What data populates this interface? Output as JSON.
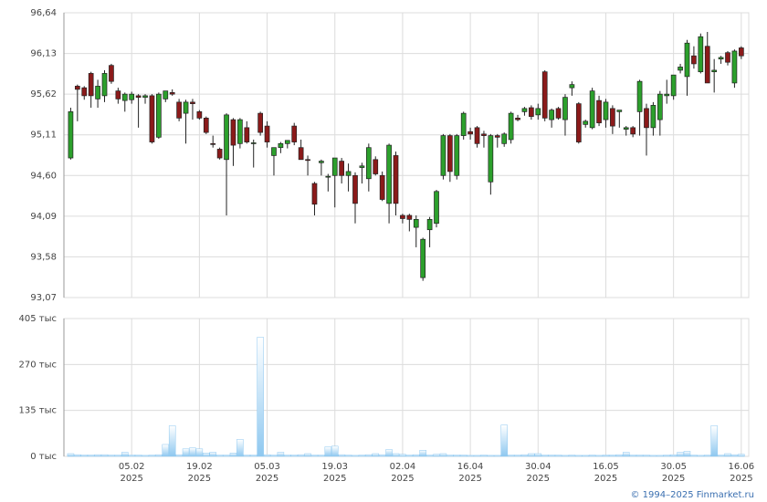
{
  "chart_data": {
    "type": "candlestick",
    "yticks": [
      {
        "value": 93.07,
        "label": "93,07"
      },
      {
        "value": 93.58,
        "label": "93,58"
      },
      {
        "value": 94.09,
        "label": "94,09"
      },
      {
        "value": 94.6,
        "label": "94,60"
      },
      {
        "value": 95.11,
        "label": "95,11"
      },
      {
        "value": 95.62,
        "label": "95,62"
      },
      {
        "value": 96.13,
        "label": "96,13"
      },
      {
        "value": 96.64,
        "label": "96,64"
      }
    ],
    "ylim": [
      93.07,
      96.64
    ],
    "xlim": [
      -1,
      100.1
    ],
    "xticks": [
      {
        "value": 9,
        "label": "05.02",
        "year": "2025"
      },
      {
        "value": 19,
        "label": "19.02",
        "year": "2025"
      },
      {
        "value": 29,
        "label": "05.03",
        "year": "2025"
      },
      {
        "value": 39,
        "label": "19.03",
        "year": "2025"
      },
      {
        "value": 49,
        "label": "02.04",
        "year": "2025"
      },
      {
        "value": 59,
        "label": "16.04",
        "year": "2025"
      },
      {
        "value": 69,
        "label": "30.04",
        "year": "2025"
      },
      {
        "value": 79,
        "label": "16.05",
        "year": "2025"
      },
      {
        "value": 89,
        "label": "30.05",
        "year": "2025"
      },
      {
        "value": 99,
        "label": "16.06",
        "year": "2025"
      }
    ],
    "up_color": "#2ca02c",
    "down_color": "#8b1a1a",
    "volume_color": "#8ec8f0",
    "open": [
      94.82,
      95.72,
      95.7,
      95.88,
      95.56,
      95.6,
      95.98,
      95.66,
      95.54,
      95.55,
      95.6,
      95.58,
      95.6,
      95.08,
      95.56,
      95.64,
      95.52,
      95.38,
      95.52,
      95.4,
      95.32,
      95.0,
      94.93,
      94.8,
      95.3,
      95.0,
      95.2,
      95.0,
      95.38,
      95.22,
      94.85,
      94.95,
      95.0,
      95.22,
      94.95,
      94.8,
      94.5,
      94.76,
      94.58,
      94.6,
      94.78,
      94.6,
      94.6,
      94.7,
      94.56,
      94.8,
      94.6,
      94.25,
      94.85,
      94.1,
      94.1,
      93.95,
      93.32,
      93.92,
      94.0,
      94.6,
      95.1,
      94.6,
      95.1,
      95.15,
      95.2,
      95.12,
      94.52,
      95.1,
      95.0,
      95.05,
      95.32,
      95.4,
      95.45,
      95.36,
      95.9,
      95.3,
      95.44,
      95.3,
      95.7,
      95.5,
      95.24,
      95.2,
      95.54,
      95.3,
      95.44,
      95.4,
      95.18,
      95.2,
      95.4,
      95.44,
      95.2,
      95.3,
      95.6,
      95.6,
      95.92,
      95.84,
      96.1,
      95.9,
      96.22,
      95.9,
      96.06,
      96.14,
      95.76,
      96.2
    ],
    "high": [
      95.45,
      95.74,
      95.72,
      95.9,
      95.8,
      95.92,
      96.0,
      95.7,
      95.64,
      95.65,
      95.62,
      95.62,
      95.62,
      95.64,
      95.66,
      95.68,
      95.56,
      95.55,
      95.56,
      95.42,
      95.34,
      95.1,
      94.95,
      95.38,
      95.32,
      95.32,
      95.28,
      95.05,
      95.4,
      95.28,
      94.95,
      95.02,
      95.04,
      95.26,
      95.05,
      94.85,
      94.52,
      94.8,
      94.62,
      94.82,
      94.82,
      94.75,
      94.64,
      94.76,
      95.0,
      94.84,
      94.65,
      95.0,
      94.9,
      94.12,
      94.12,
      94.1,
      93.82,
      94.08,
      94.42,
      95.12,
      95.12,
      95.12,
      95.4,
      95.2,
      95.22,
      95.16,
      95.12,
      95.12,
      95.14,
      95.4,
      95.36,
      95.46,
      95.48,
      95.5,
      95.92,
      95.44,
      95.46,
      95.62,
      95.78,
      95.52,
      95.3,
      95.7,
      95.6,
      95.56,
      95.48,
      95.42,
      95.22,
      95.22,
      95.8,
      95.5,
      95.52,
      95.66,
      95.8,
      95.86,
      96.0,
      96.3,
      96.22,
      96.38,
      96.4,
      96.06,
      96.1,
      96.16,
      96.18,
      96.22
    ],
    "low": [
      94.8,
      95.28,
      95.55,
      95.45,
      95.45,
      95.52,
      95.75,
      95.5,
      95.4,
      95.5,
      95.2,
      95.5,
      95.0,
      95.06,
      95.52,
      95.6,
      95.28,
      95.0,
      95.3,
      95.3,
      95.12,
      94.95,
      94.8,
      94.1,
      94.72,
      94.94,
      95.0,
      94.7,
      95.1,
      94.95,
      94.6,
      94.88,
      94.94,
      94.98,
      94.8,
      94.6,
      94.1,
      94.6,
      94.4,
      94.2,
      94.5,
      94.4,
      94.0,
      94.5,
      94.4,
      94.6,
      94.28,
      94.0,
      94.1,
      94.0,
      93.9,
      93.7,
      93.28,
      93.7,
      93.95,
      94.55,
      94.52,
      94.55,
      95.05,
      95.05,
      94.95,
      94.95,
      94.36,
      94.95,
      94.96,
      95.0,
      95.28,
      95.35,
      95.3,
      95.3,
      95.28,
      95.2,
      95.3,
      95.1,
      95.6,
      95.0,
      95.2,
      95.18,
      95.22,
      95.2,
      95.12,
      95.2,
      95.1,
      95.08,
      95.1,
      94.85,
      95.1,
      95.1,
      95.5,
      95.55,
      95.88,
      95.6,
      95.94,
      95.88,
      95.76,
      95.64,
      96.0,
      95.98,
      95.7,
      96.06
    ],
    "close": [
      95.4,
      95.68,
      95.6,
      95.6,
      95.72,
      95.88,
      95.78,
      95.56,
      95.62,
      95.62,
      95.58,
      95.6,
      95.02,
      95.62,
      95.66,
      95.62,
      95.32,
      95.52,
      95.5,
      95.32,
      95.14,
      94.99,
      94.82,
      95.36,
      94.98,
      95.3,
      95.02,
      95.01,
      95.14,
      95.02,
      94.95,
      95.0,
      95.04,
      95.02,
      94.8,
      94.79,
      94.24,
      94.78,
      94.59,
      94.82,
      94.6,
      94.65,
      94.25,
      94.72,
      94.95,
      94.62,
      94.3,
      94.98,
      94.25,
      94.06,
      94.05,
      94.05,
      93.8,
      94.05,
      94.4,
      95.1,
      94.65,
      95.1,
      95.38,
      95.12,
      95.0,
      95.1,
      95.1,
      95.08,
      95.12,
      95.38,
      95.3,
      95.44,
      95.34,
      95.44,
      95.32,
      95.42,
      95.32,
      95.58,
      95.74,
      95.02,
      95.28,
      95.66,
      95.26,
      95.52,
      95.22,
      95.42,
      95.2,
      95.12,
      95.78,
      95.2,
      95.48,
      95.62,
      95.62,
      95.86,
      95.96,
      96.26,
      96.0,
      96.34,
      95.76,
      95.92,
      96.08,
      96.02,
      96.16,
      96.1
    ],
    "volume": [
      8,
      5,
      4,
      4,
      5,
      5,
      4,
      4,
      12,
      4,
      4,
      3,
      4,
      5,
      35,
      90,
      5,
      22,
      25,
      22,
      10,
      12,
      4,
      4,
      10,
      50,
      4,
      4,
      350,
      5,
      4,
      12,
      4,
      4,
      5,
      8,
      4,
      4,
      28,
      30,
      5,
      4,
      3,
      4,
      5,
      8,
      5,
      20,
      8,
      6,
      4,
      5,
      18,
      4,
      6,
      8,
      4,
      4,
      4,
      3,
      3,
      4,
      3,
      3,
      92,
      4,
      4,
      5,
      8,
      8,
      4,
      4,
      4,
      3,
      4,
      3,
      3,
      4,
      3,
      4,
      4,
      5,
      12,
      4,
      4,
      4,
      3,
      3,
      4,
      5,
      12,
      15,
      4,
      3,
      4,
      90,
      4,
      8,
      5,
      6
    ],
    "volume_ylim": [
      0,
      405
    ],
    "volume_yticks": [
      {
        "value": 0,
        "label": "0 тыс"
      },
      {
        "value": 135,
        "label": "135 тыс"
      },
      {
        "value": 270,
        "label": "270 тыс"
      },
      {
        "value": 405,
        "label": "405 тыс"
      }
    ],
    "copyright": "© 1994–2025 Finmarket.ru"
  }
}
